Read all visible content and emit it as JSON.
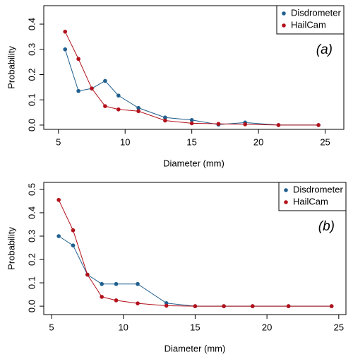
{
  "chart_data": [
    {
      "type": "line",
      "xlabel": "Diameter (mm)",
      "ylabel": "Probability",
      "annotation": "(a)",
      "legend": "top-right",
      "x": [
        5.5,
        6.5,
        7.5,
        8.5,
        9.5,
        11,
        13,
        15,
        17,
        19,
        21.5,
        24.5
      ],
      "series": [
        {
          "name": "Disdrometer",
          "color": "#1f5f8f",
          "values": [
            0.3,
            0.135,
            0.145,
            0.175,
            0.117,
            0.068,
            0.03,
            0.02,
            0.002,
            0.01,
            0.0,
            0.0
          ]
        },
        {
          "name": "HailCam",
          "color": "#b3111b",
          "values": [
            0.37,
            0.262,
            0.145,
            0.075,
            0.062,
            0.055,
            0.018,
            0.007,
            0.005,
            0.003,
            0.0,
            0.0
          ]
        }
      ],
      "xlim": [
        3.9,
        26.4
      ],
      "xticks": [
        5,
        10,
        15,
        20,
        25
      ],
      "ylim": [
        -0.017,
        0.473
      ],
      "yticks": [
        {
          "value": 0,
          "label": "0.0"
        },
        {
          "value": 0.1,
          "label": "0.1"
        },
        {
          "value": 0.2,
          "label": "0.2"
        },
        {
          "value": 0.3,
          "label": "0.3"
        },
        {
          "value": 0.4,
          "label": "0.4"
        }
      ]
    },
    {
      "type": "line",
      "xlabel": "Diameter (mm)",
      "ylabel": "Probability",
      "annotation": "(b)",
      "legend": "top-right",
      "x": [
        5.5,
        6.5,
        7.5,
        8.5,
        9.5,
        11,
        13,
        15,
        17,
        19,
        21.5,
        24.5
      ],
      "series": [
        {
          "name": "Disdrometer",
          "color": "#1f5f8f",
          "values": [
            0.3,
            0.26,
            0.135,
            0.095,
            0.095,
            0.095,
            0.013,
            0.0,
            0.0,
            0.0,
            0.0,
            0.0
          ]
        },
        {
          "name": "HailCam",
          "color": "#b3111b",
          "values": [
            0.455,
            0.325,
            0.135,
            0.04,
            0.025,
            0.012,
            0.002,
            0.0,
            0.0,
            0.0,
            0.0,
            0.0
          ]
        }
      ],
      "xlim": [
        4.46,
        25.5
      ],
      "xticks": [
        5,
        10,
        15,
        20,
        25
      ],
      "ylim": [
        -0.036,
        0.53
      ],
      "yticks": [
        {
          "value": 0,
          "label": "0.0"
        },
        {
          "value": 0.1,
          "label": "0.1"
        },
        {
          "value": 0.2,
          "label": "0.2"
        },
        {
          "value": 0.3,
          "label": "0.3"
        },
        {
          "value": 0.4,
          "label": "0.4"
        },
        {
          "value": 0.5,
          "label": "0.5"
        }
      ]
    }
  ]
}
